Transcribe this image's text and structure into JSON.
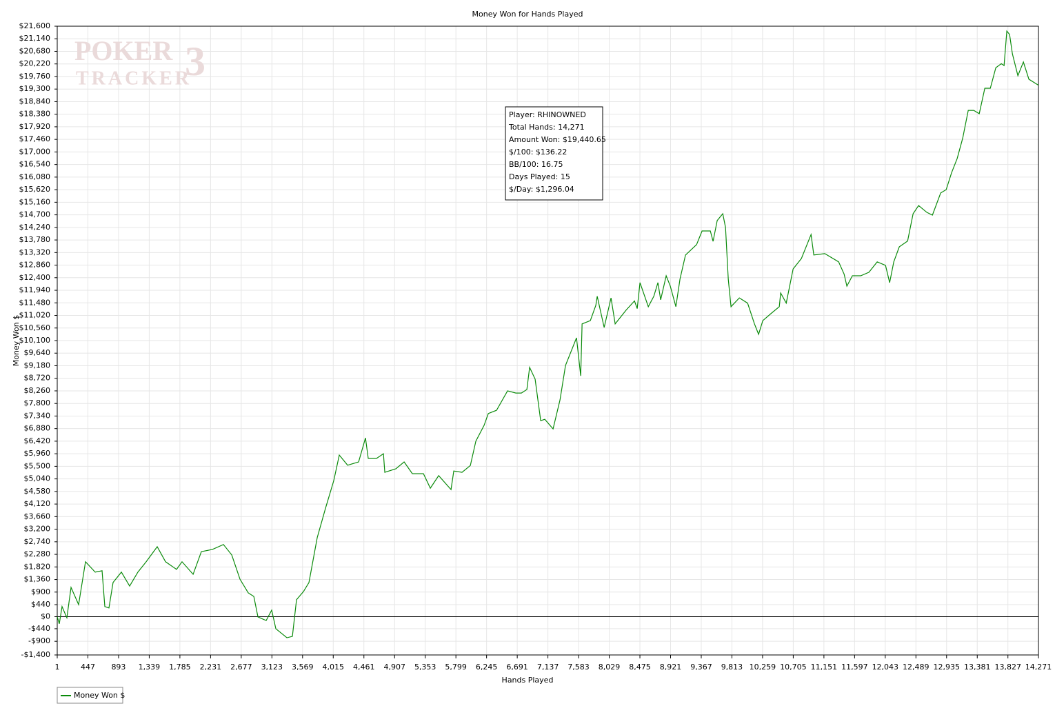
{
  "chart_data": {
    "type": "line",
    "title": "Money Won for Hands Played",
    "x_label": "Hands Played",
    "y_label": "Money Won $",
    "watermark": [
      "POKER",
      "TRACKER",
      "3"
    ],
    "annotation": [
      "Player: RHINOWNED",
      "Total Hands: 14,271",
      "Amount Won: $19,440.65",
      "$/100: $136.22",
      "BB/100: 16.75",
      "Days Played: 15",
      "$/Day: $1,296.04"
    ],
    "grid": true,
    "legend": "bottom-left",
    "xlim": [
      1,
      14271
    ],
    "ylim": [
      -1400,
      21600
    ],
    "xticks": [
      1,
      447,
      893,
      {
        "value": 1339,
        "label": "1,339"
      },
      {
        "value": 1785,
        "label": "1,785"
      },
      {
        "value": 2231,
        "label": "2,231"
      },
      {
        "value": 2677,
        "label": "2,677"
      },
      {
        "value": 3123,
        "label": "3,123"
      },
      {
        "value": 3569,
        "label": "3,569"
      },
      {
        "value": 4015,
        "label": "4,015"
      },
      {
        "value": 4461,
        "label": "4,461"
      },
      {
        "value": 4907,
        "label": "4,907"
      },
      {
        "value": 5353,
        "label": "5,353"
      },
      {
        "value": 5799,
        "label": "5,799"
      },
      {
        "value": 6245,
        "label": "6,245"
      },
      {
        "value": 6691,
        "label": "6,691"
      },
      {
        "value": 7137,
        "label": "7,137"
      },
      {
        "value": 7583,
        "label": "7,583"
      },
      {
        "value": 8029,
        "label": "8,029"
      },
      {
        "value": 8475,
        "label": "8,475"
      },
      {
        "value": 8921,
        "label": "8,921"
      },
      {
        "value": 9367,
        "label": "9,367"
      },
      {
        "value": 9813,
        "label": "9,813"
      },
      {
        "value": 10259,
        "label": "10,259"
      },
      {
        "value": 10705,
        "label": "10,705"
      },
      {
        "value": 11151,
        "label": "11,151"
      },
      {
        "value": 11597,
        "label": "11,597"
      },
      {
        "value": 12043,
        "label": "12,043"
      },
      {
        "value": 12489,
        "label": "12,489"
      },
      {
        "value": 12935,
        "label": "12,935"
      },
      {
        "value": 13381,
        "label": "13,381"
      },
      {
        "value": 13827,
        "label": "13,827"
      },
      {
        "value": 14271,
        "label": "14,271"
      }
    ],
    "yticks": [
      {
        "value": -1400,
        "label": "-$1,400"
      },
      {
        "value": -900,
        "label": "-$900"
      },
      {
        "value": -440,
        "label": "-$440"
      },
      {
        "value": 0,
        "label": "$0"
      },
      {
        "value": 440,
        "label": "$440"
      },
      {
        "value": 900,
        "label": "$900"
      },
      {
        "value": 1360,
        "label": "$1,360"
      },
      {
        "value": 1820,
        "label": "$1,820"
      },
      {
        "value": 2280,
        "label": "$2,280"
      },
      {
        "value": 2740,
        "label": "$2,740"
      },
      {
        "value": 3200,
        "label": "$3,200"
      },
      {
        "value": 3660,
        "label": "$3,660"
      },
      {
        "value": 4120,
        "label": "$4,120"
      },
      {
        "value": 4580,
        "label": "$4,580"
      },
      {
        "value": 5040,
        "label": "$5,040"
      },
      {
        "value": 5500,
        "label": "$5,500"
      },
      {
        "value": 5960,
        "label": "$5,960"
      },
      {
        "value": 6420,
        "label": "$6,420"
      },
      {
        "value": 6880,
        "label": "$6,880"
      },
      {
        "value": 7340,
        "label": "$7,340"
      },
      {
        "value": 7800,
        "label": "$7,800"
      },
      {
        "value": 8260,
        "label": "$8,260"
      },
      {
        "value": 8720,
        "label": "$8,720"
      },
      {
        "value": 9180,
        "label": "$9,180"
      },
      {
        "value": 9640,
        "label": "$9,640"
      },
      {
        "value": 10100,
        "label": "$10,100"
      },
      {
        "value": 10560,
        "label": "$10,560"
      },
      {
        "value": 11020,
        "label": "$11,020"
      },
      {
        "value": 11480,
        "label": "$11,480"
      },
      {
        "value": 11940,
        "label": "$11,940"
      },
      {
        "value": 12400,
        "label": "$12,400"
      },
      {
        "value": 12860,
        "label": "$12,860"
      },
      {
        "value": 13320,
        "label": "$13,320"
      },
      {
        "value": 13780,
        "label": "$13,780"
      },
      {
        "value": 14240,
        "label": "$14,240"
      },
      {
        "value": 14700,
        "label": "$14,700"
      },
      {
        "value": 15160,
        "label": "$15,160"
      },
      {
        "value": 15620,
        "label": "$15,620"
      },
      {
        "value": 16080,
        "label": "$16,080"
      },
      {
        "value": 16540,
        "label": "$16,540"
      },
      {
        "value": 17000,
        "label": "$17,000"
      },
      {
        "value": 17460,
        "label": "$17,460"
      },
      {
        "value": 17920,
        "label": "$17,920"
      },
      {
        "value": 18380,
        "label": "$18,380"
      },
      {
        "value": 18840,
        "label": "$18,840"
      },
      {
        "value": 19300,
        "label": "$19,300"
      },
      {
        "value": 19760,
        "label": "$19,760"
      },
      {
        "value": 20220,
        "label": "$20,220"
      },
      {
        "value": 20680,
        "label": "$20,680"
      },
      {
        "value": 21140,
        "label": "$21,140"
      },
      {
        "value": 21600,
        "label": "$21,600"
      }
    ],
    "x": [
      1,
      31,
      71,
      141,
      202,
      312,
      412,
      553,
      653,
      693,
      753,
      813,
      934,
      1054,
      1174,
      1295,
      1455,
      1576,
      1736,
      1816,
      1977,
      2097,
      2258,
      2418,
      2539,
      2659,
      2779,
      2860,
      2920,
      3040,
      3120,
      3180,
      3341,
      3421,
      3481,
      3582,
      3662,
      3782,
      3903,
      4023,
      4103,
      4224,
      4384,
      4484,
      4524,
      4645,
      4745,
      4765,
      4926,
      5046,
      5166,
      5327,
      5427,
      5548,
      5728,
      5768,
      5888,
      6009,
      6089,
      6209,
      6270,
      6390,
      6550,
      6671,
      6751,
      6831,
      6871,
      6951,
      7032,
      7092,
      7212,
      7313,
      7393,
      7553,
      7614,
      7634,
      7754,
      7834,
      7854,
      7955,
      8055,
      8115,
      8276,
      8396,
      8436,
      8476,
      8597,
      8677,
      8737,
      8777,
      8857,
      8917,
      8998,
      9058,
      9138,
      9299,
      9379,
      9499,
      9539,
      9599,
      9680,
      9720,
      9760,
      9800,
      9921,
      10041,
      10141,
      10201,
      10262,
      10382,
      10502,
      10522,
      10603,
      10703,
      10823,
      10964,
      11004,
      11164,
      11365,
      11445,
      11485,
      11565,
      11686,
      11806,
      11926,
      12047,
      12107,
      12167,
      12247,
      12368,
      12448,
      12528,
      12648,
      12729,
      12849,
      12929,
      13009,
      13089,
      13170,
      13250,
      13330,
      13410,
      13491,
      13571,
      13651,
      13731,
      13771,
      13811,
      13851,
      13892,
      13972,
      14052,
      14132,
      14271
    ],
    "series": [
      {
        "name": "Money Won $",
        "color": "#0a8a0a",
        "values": [
          0,
          -260,
          370,
          -40,
          1070,
          440,
          2010,
          1630,
          1680,
          370,
          320,
          1250,
          1630,
          1120,
          1630,
          2010,
          2560,
          2010,
          1730,
          2010,
          1550,
          2380,
          2460,
          2640,
          2260,
          1370,
          870,
          740,
          -10,
          -140,
          240,
          -440,
          -770,
          -720,
          620,
          920,
          1250,
          2890,
          3970,
          4980,
          5910,
          5540,
          5660,
          6540,
          5790,
          5790,
          5960,
          5280,
          5410,
          5660,
          5230,
          5230,
          4700,
          5160,
          4650,
          5330,
          5280,
          5530,
          6420,
          7000,
          7430,
          7550,
          8260,
          8180,
          8180,
          8310,
          9120,
          8690,
          7170,
          7220,
          6870,
          7930,
          9190,
          10200,
          8810,
          10710,
          10830,
          11390,
          11720,
          10580,
          11660,
          10710,
          11220,
          11550,
          11270,
          12220,
          11340,
          11720,
          12220,
          11590,
          12470,
          12090,
          11340,
          12350,
          13230,
          13610,
          14110,
          14110,
          13730,
          14490,
          14740,
          14240,
          12350,
          11340,
          11660,
          11470,
          10710,
          10330,
          10830,
          11090,
          11340,
          11840,
          11470,
          12720,
          13100,
          13980,
          13230,
          13280,
          12980,
          12530,
          12090,
          12470,
          12470,
          12600,
          12980,
          12850,
          12220,
          12980,
          13530,
          13740,
          14740,
          15040,
          14790,
          14690,
          15500,
          15620,
          16250,
          16760,
          17510,
          18520,
          18520,
          18400,
          19330,
          19330,
          20080,
          20230,
          20160,
          21420,
          21300,
          20590,
          19790,
          20290,
          19660,
          19440.65
        ]
      }
    ]
  }
}
